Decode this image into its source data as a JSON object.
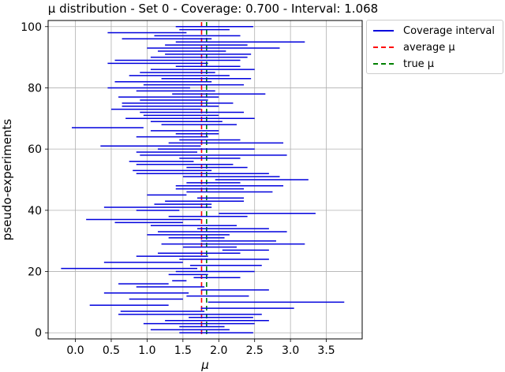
{
  "chart_data": {
    "type": "interval",
    "title": "μ distribution - Set 0 - Coverage: 0.700 - Interval: 1.068",
    "xlabel": "μ",
    "ylabel": "pseudo-experiments",
    "xlim": [
      -0.38,
      4.0
    ],
    "ylim": [
      -2,
      102
    ],
    "xticks": [
      0.0,
      0.5,
      1.0,
      1.5,
      2.0,
      2.5,
      3.0,
      3.5
    ],
    "xtick_labels": [
      "0.0",
      "0.5",
      "1.0",
      "1.5",
      "2.0",
      "2.5",
      "3.0",
      "3.5"
    ],
    "yticks": [
      0,
      20,
      40,
      60,
      80,
      100
    ],
    "ytick_labels": [
      "0",
      "20",
      "40",
      "60",
      "80",
      "100"
    ],
    "grid": true,
    "legend_position": "outside-top-right",
    "average_mu": 1.76,
    "true_mu": 1.83,
    "colors": {
      "interval": "#0000dd",
      "average": "#ff0000",
      "true": "#008000"
    },
    "intervals": [
      {
        "y": 0,
        "lo": 1.45,
        "hi": 2.48
      },
      {
        "y": 1,
        "lo": 1.05,
        "hi": 2.15
      },
      {
        "y": 2,
        "lo": 1.45,
        "hi": 2.08
      },
      {
        "y": 3,
        "lo": 0.95,
        "hi": 2.5
      },
      {
        "y": 4,
        "lo": 1.25,
        "hi": 2.7
      },
      {
        "y": 5,
        "lo": 1.58,
        "hi": 2.48
      },
      {
        "y": 6,
        "lo": 0.6,
        "hi": 2.6
      },
      {
        "y": 7,
        "lo": 0.63,
        "hi": 1.8
      },
      {
        "y": 8,
        "lo": 1.75,
        "hi": 3.05
      },
      {
        "y": 9,
        "lo": 0.2,
        "hi": 1.3
      },
      {
        "y": 10,
        "lo": 1.85,
        "hi": 3.75
      },
      {
        "y": 11,
        "lo": 0.75,
        "hi": 1.5
      },
      {
        "y": 12,
        "lo": 1.55,
        "hi": 2.42
      },
      {
        "y": 13,
        "lo": 0.4,
        "hi": 1.58
      },
      {
        "y": 14,
        "lo": 1.75,
        "hi": 2.7
      },
      {
        "y": 15,
        "lo": 0.85,
        "hi": 1.8
      },
      {
        "y": 16,
        "lo": 0.6,
        "hi": 1.3
      },
      {
        "y": 17,
        "lo": 1.35,
        "hi": 1.55
      },
      {
        "y": 18,
        "lo": 1.65,
        "hi": 2.3
      },
      {
        "y": 19,
        "lo": 1.3,
        "hi": 1.85
      },
      {
        "y": 20,
        "lo": 1.4,
        "hi": 2.5
      },
      {
        "y": 21,
        "lo": -0.2,
        "hi": 1.7
      },
      {
        "y": 22,
        "lo": 1.6,
        "hi": 2.6
      },
      {
        "y": 23,
        "lo": 0.4,
        "hi": 1.5
      },
      {
        "y": 24,
        "lo": 1.45,
        "hi": 2.7
      },
      {
        "y": 25,
        "lo": 0.85,
        "hi": 1.85
      },
      {
        "y": 26,
        "lo": 1.15,
        "hi": 2.3
      },
      {
        "y": 27,
        "lo": 2.05,
        "hi": 2.7
      },
      {
        "y": 28,
        "lo": 1.5,
        "hi": 2.25
      },
      {
        "y": 29,
        "lo": 1.2,
        "hi": 3.2
      },
      {
        "y": 30,
        "lo": 1.75,
        "hi": 2.8
      },
      {
        "y": 31,
        "lo": 1.3,
        "hi": 2.08
      },
      {
        "y": 32,
        "lo": 1.0,
        "hi": 2.15
      },
      {
        "y": 33,
        "lo": 1.15,
        "hi": 2.95
      },
      {
        "y": 34,
        "lo": 1.7,
        "hi": 2.7
      },
      {
        "y": 35,
        "lo": 1.05,
        "hi": 2.25
      },
      {
        "y": 36,
        "lo": 0.55,
        "hi": 1.5
      },
      {
        "y": 37,
        "lo": 0.15,
        "hi": 1.75
      },
      {
        "y": 38,
        "lo": 1.3,
        "hi": 2.4
      },
      {
        "y": 39,
        "lo": 2.0,
        "hi": 3.35
      },
      {
        "y": 40,
        "lo": 0.85,
        "hi": 1.45
      },
      {
        "y": 41,
        "lo": 0.4,
        "hi": 1.9
      },
      {
        "y": 42,
        "lo": 1.1,
        "hi": 1.9
      },
      {
        "y": 43,
        "lo": 1.25,
        "hi": 2.35
      },
      {
        "y": 44,
        "lo": 1.7,
        "hi": 2.35
      },
      {
        "y": 45,
        "lo": 1.0,
        "hi": 1.55
      },
      {
        "y": 46,
        "lo": 1.55,
        "hi": 2.75
      },
      {
        "y": 47,
        "lo": 1.4,
        "hi": 2.35
      },
      {
        "y": 48,
        "lo": 1.4,
        "hi": 2.9
      },
      {
        "y": 49,
        "lo": 1.55,
        "hi": 2.3
      },
      {
        "y": 50,
        "lo": 1.95,
        "hi": 3.25
      },
      {
        "y": 51,
        "lo": 1.5,
        "hi": 2.85
      },
      {
        "y": 52,
        "lo": 0.85,
        "hi": 2.7
      },
      {
        "y": 53,
        "lo": 0.8,
        "hi": 1.9
      },
      {
        "y": 54,
        "lo": 1.55,
        "hi": 2.4
      },
      {
        "y": 55,
        "lo": 0.85,
        "hi": 2.2
      },
      {
        "y": 56,
        "lo": 0.75,
        "hi": 1.65
      },
      {
        "y": 57,
        "lo": 1.45,
        "hi": 2.3
      },
      {
        "y": 58,
        "lo": 0.9,
        "hi": 2.95
      },
      {
        "y": 59,
        "lo": 0.85,
        "hi": 1.7
      },
      {
        "y": 60,
        "lo": 1.15,
        "hi": 2.5
      },
      {
        "y": 61,
        "lo": 0.35,
        "hi": 1.75
      },
      {
        "y": 62,
        "lo": 1.3,
        "hi": 2.9
      },
      {
        "y": 63,
        "lo": 1.45,
        "hi": 2.3
      },
      {
        "y": 64,
        "lo": 0.85,
        "hi": 1.85
      },
      {
        "y": 65,
        "lo": 1.4,
        "hi": 2.0
      },
      {
        "y": 66,
        "lo": 1.05,
        "hi": 2.0
      },
      {
        "y": 67,
        "lo": -0.05,
        "hi": 0.95
      },
      {
        "y": 68,
        "lo": 1.2,
        "hi": 2.25
      },
      {
        "y": 69,
        "lo": 1.05,
        "hi": 2.05
      },
      {
        "y": 70,
        "lo": 0.7,
        "hi": 2.5
      },
      {
        "y": 71,
        "lo": 0.95,
        "hi": 2.0
      },
      {
        "y": 72,
        "lo": 0.9,
        "hi": 2.35
      },
      {
        "y": 73,
        "lo": 0.5,
        "hi": 1.75
      },
      {
        "y": 74,
        "lo": 0.65,
        "hi": 2.0
      },
      {
        "y": 75,
        "lo": 0.65,
        "hi": 2.2
      },
      {
        "y": 76,
        "lo": 0.9,
        "hi": 1.85
      },
      {
        "y": 77,
        "lo": 0.6,
        "hi": 2.0
      },
      {
        "y": 78,
        "lo": 1.35,
        "hi": 2.65
      },
      {
        "y": 79,
        "lo": 0.85,
        "hi": 1.95
      },
      {
        "y": 80,
        "lo": 0.45,
        "hi": 1.6
      },
      {
        "y": 81,
        "lo": 0.95,
        "hi": 2.35
      },
      {
        "y": 82,
        "lo": 0.55,
        "hi": 1.9
      },
      {
        "y": 83,
        "lo": 1.2,
        "hi": 2.45
      },
      {
        "y": 84,
        "lo": 0.75,
        "hi": 2.15
      },
      {
        "y": 85,
        "lo": 0.9,
        "hi": 1.95
      },
      {
        "y": 86,
        "lo": 1.05,
        "hi": 2.5
      },
      {
        "y": 87,
        "lo": 1.4,
        "hi": 2.3
      },
      {
        "y": 88,
        "lo": 0.45,
        "hi": 1.85
      },
      {
        "y": 89,
        "lo": 0.55,
        "hi": 2.3
      },
      {
        "y": 90,
        "lo": 1.05,
        "hi": 2.4
      },
      {
        "y": 91,
        "lo": 1.25,
        "hi": 2.45
      },
      {
        "y": 92,
        "lo": 1.15,
        "hi": 2.1
      },
      {
        "y": 93,
        "lo": 1.0,
        "hi": 2.85
      },
      {
        "y": 94,
        "lo": 1.25,
        "hi": 2.4
      },
      {
        "y": 95,
        "lo": 1.4,
        "hi": 3.2
      },
      {
        "y": 96,
        "lo": 0.65,
        "hi": 1.9
      },
      {
        "y": 97,
        "lo": 1.1,
        "hi": 2.3
      },
      {
        "y": 98,
        "lo": 0.45,
        "hi": 1.55
      },
      {
        "y": 99,
        "lo": 1.45,
        "hi": 2.15
      },
      {
        "y": 100,
        "lo": 1.4,
        "hi": 2.48
      }
    ]
  },
  "legend": {
    "items": [
      {
        "label": "Coverage interval",
        "style": "solid",
        "color": "#0000dd"
      },
      {
        "label": "average μ",
        "style": "dashed",
        "color": "#ff0000"
      },
      {
        "label": "true μ",
        "style": "dashed",
        "color": "#008000"
      }
    ]
  }
}
